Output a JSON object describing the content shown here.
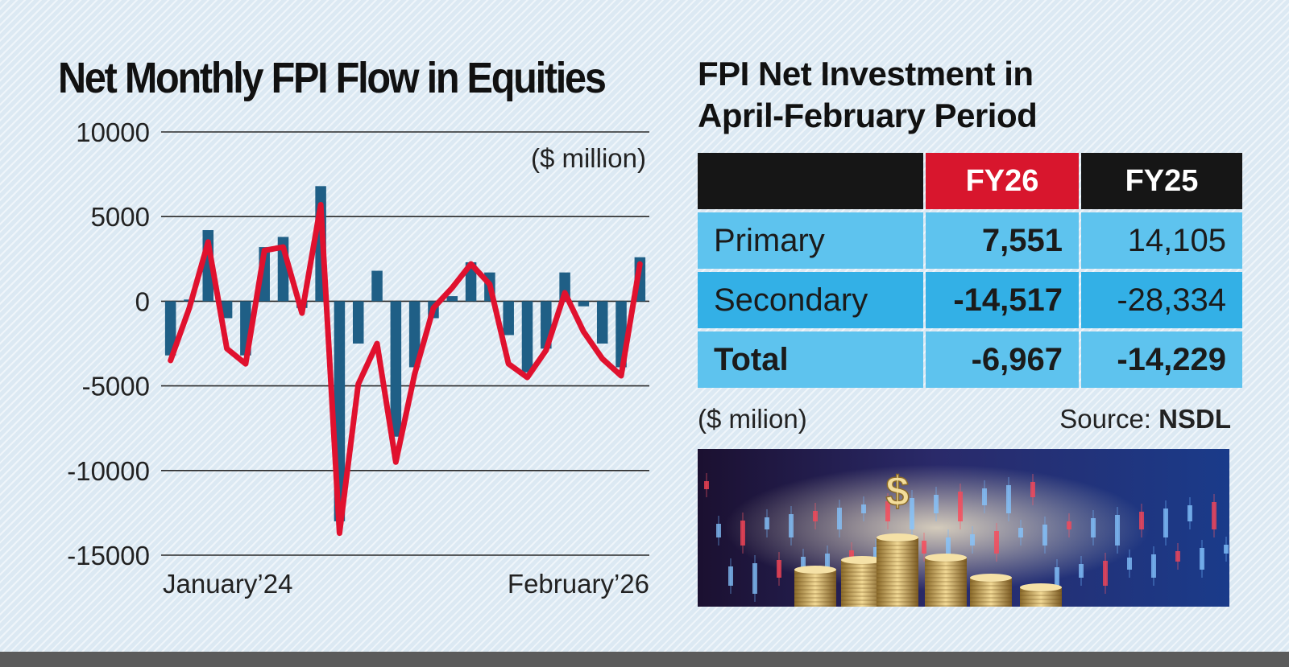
{
  "chart_data": {
    "type": "bar",
    "title": "Net Monthly FPI Flow in Equities",
    "unit": "($ million)",
    "x_start_label": "January’24",
    "x_end_label": "February’26",
    "ylim": [
      -15000,
      10000
    ],
    "yticks": [
      10000,
      5000,
      0,
      -5000,
      -10000,
      -15000
    ],
    "grid": true,
    "series": [
      {
        "type": "bar",
        "color": "#1f5f86",
        "values": [
          -3200,
          100,
          4200,
          -1000,
          -3200,
          3200,
          3800,
          -400,
          6800,
          -13000,
          -2500,
          1800,
          -8000,
          -3900,
          -1000,
          300,
          2300,
          1700,
          -2000,
          -4200,
          -2800,
          1700,
          -300,
          -2500,
          -3900,
          2600
        ]
      },
      {
        "type": "line",
        "color": "#e0112e",
        "values": [
          -3500,
          -400,
          3500,
          -2800,
          -3700,
          3000,
          3200,
          -700,
          5700,
          -13700,
          -4900,
          -2500,
          -9500,
          -4300,
          -400,
          800,
          2200,
          1000,
          -3700,
          -4500,
          -2900,
          500,
          -1800,
          -3400,
          -4400,
          2200
        ]
      }
    ]
  },
  "table": {
    "title_line1": "FPI Net Investment in",
    "title_line2": "April-February Period",
    "headers": [
      "FY26",
      "FY25"
    ],
    "rows": [
      {
        "label": "Primary",
        "fy26": "7,551",
        "fy25": "14,105"
      },
      {
        "label": "Secondary",
        "fy26": "-14,517",
        "fy25": "-28,334"
      },
      {
        "label": "Total",
        "fy26": "-6,967",
        "fy25": "-14,229"
      }
    ],
    "unit": "($ milion)",
    "source_prefix": "Source:",
    "source_name": "NSDL"
  },
  "photo": {
    "symbol": "$",
    "icon": "dollar-coins-candlestick-photo"
  },
  "colors": {
    "fy26_header": "#d8162d",
    "header": "#161616",
    "row_light": "#5ec3ee",
    "row_dark": "#33b0e6",
    "bar": "#1f5f86",
    "line": "#e0112e"
  }
}
